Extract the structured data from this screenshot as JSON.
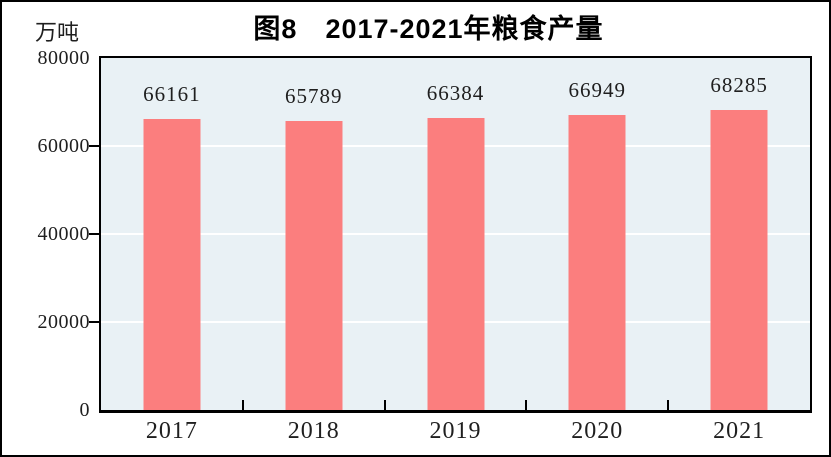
{
  "title": "图8　2017-2021年粮食产量",
  "chart_data": {
    "type": "bar",
    "title": "图8　2017-2021年粮食产量",
    "unit_label": "万吨",
    "categories": [
      "2017",
      "2018",
      "2019",
      "2020",
      "2021"
    ],
    "values": [
      66161,
      65789,
      66384,
      66949,
      68285
    ],
    "value_labels": [
      "66161",
      "65789",
      "66384",
      "66949",
      "68285"
    ],
    "ylabel": "万吨",
    "xlabel": "",
    "ylim": [
      0,
      80000
    ],
    "yticks": [
      0,
      20000,
      40000,
      60000,
      80000
    ],
    "ytick_labels": [
      "0",
      "20000",
      "40000",
      "60000",
      "80000"
    ],
    "grid": true,
    "legend": "none",
    "colors": {
      "bar": "#fb7e7e",
      "plot_background": "#e9f1f5",
      "gridline": "#ffffff",
      "axis": "#000000",
      "text": "#1f1f1f",
      "frame": "#000000"
    }
  }
}
